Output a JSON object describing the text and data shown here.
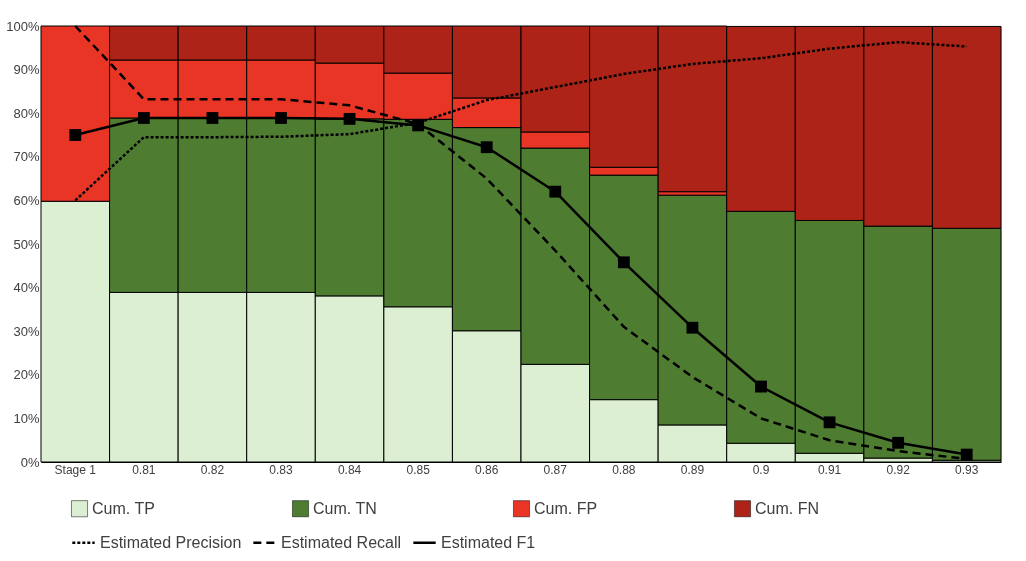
{
  "chart_data": {
    "type": "bar",
    "stacked": true,
    "categories": [
      "Stage 1",
      "0.81",
      "0.82",
      "0.83",
      "0.84",
      "0.85",
      "0.86",
      "0.87",
      "0.88",
      "0.89",
      "0.9",
      "0.91",
      "0.92",
      "0.93"
    ],
    "series": [
      {
        "name": "Cum. TP",
        "color": "#ddefd2",
        "values": [
          59.8,
          38.9,
          38.9,
          38.9,
          38.1,
          35.6,
          30.1,
          22.4,
          14.3,
          8.5,
          4.3,
          2.0,
          0.9,
          0.4
        ]
      },
      {
        "name": "Cum. TN",
        "color": "#4e7c31",
        "values": [
          null,
          40.0,
          40.0,
          40.0,
          40.6,
          43.0,
          46.6,
          49.6,
          51.5,
          52.7,
          53.2,
          53.4,
          53.2,
          53.2
        ]
      },
      {
        "name": "Cum. FP",
        "color": "#e83526",
        "values": [
          40.2,
          13.3,
          13.3,
          13.3,
          12.8,
          10.6,
          6.8,
          3.7,
          1.8,
          0.8,
          null,
          null,
          null,
          null
        ]
      },
      {
        "name": "Cum. FN",
        "color": "#ae2318",
        "values": [
          null,
          7.8,
          7.8,
          7.8,
          8.5,
          10.8,
          16.5,
          24.3,
          32.4,
          38.0,
          42.4,
          44.5,
          45.8,
          46.3
        ]
      },
      {
        "name": "Estimated Precision",
        "type": "line",
        "color": "#000000",
        "line_style": "dotted",
        "marker": "none",
        "values": [
          60,
          74.5,
          74.5,
          74.6,
          75.2,
          77.8,
          83,
          86,
          89,
          91.3,
          92.6,
          94.8,
          96.3,
          95.3
        ]
      },
      {
        "name": "Estimated Recall",
        "type": "line",
        "color": "#000000",
        "line_style": "dashed",
        "marker": "none",
        "values": [
          100,
          83.2,
          83.2,
          83.2,
          81.8,
          77.5,
          65,
          48.5,
          31,
          19.5,
          10,
          5,
          2.5,
          0.7
        ]
      },
      {
        "name": "Estimated F1",
        "type": "line",
        "color": "#000000",
        "line_style": "solid",
        "marker": "square",
        "values": [
          75,
          78.9,
          78.9,
          78.9,
          78.7,
          77.2,
          72.2,
          62,
          45.8,
          30.8,
          17.3,
          9.1,
          4.4,
          1.7
        ]
      }
    ],
    "ylim": [
      0,
      100
    ],
    "yticks": [
      {
        "value": 0,
        "label": "0%"
      },
      {
        "value": 10,
        "label": "10%"
      },
      {
        "value": 20,
        "label": "20%"
      },
      {
        "value": 30,
        "label": "30%"
      },
      {
        "value": 40,
        "label": "40%"
      },
      {
        "value": 50,
        "label": "50%"
      },
      {
        "value": 60,
        "label": "60%"
      },
      {
        "value": 70,
        "label": "70%"
      },
      {
        "value": 80,
        "label": "80%"
      },
      {
        "value": 90,
        "label": "90%"
      },
      {
        "value": 100,
        "label": "100%"
      }
    ],
    "legend": "bottom"
  }
}
